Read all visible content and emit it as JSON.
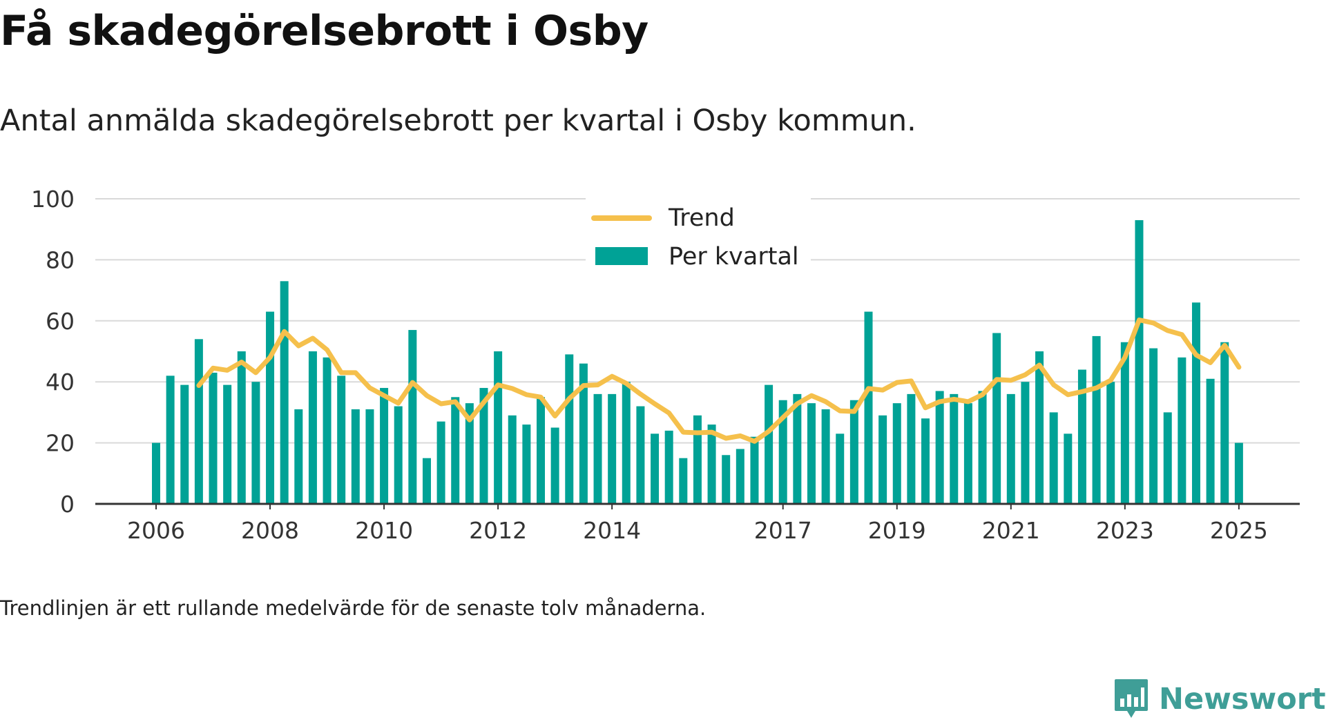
{
  "title": "Få skadegörelsebrott i Osby",
  "subtitle": "Antal anmälda skadegörelsebrott per kvartal i Osby kommun.",
  "note": "Trendlinjen är ett rullande medelvärde för de senaste tolv månaderna.",
  "brand": {
    "name": "Newsworthy",
    "logo_icon": "bar-chart-speech-bubble-icon"
  },
  "colors": {
    "bars": "#00a296",
    "trend": "#f5c04c",
    "grid": "#d9d9d9",
    "axis": "#333333",
    "brand": "#3f9e97"
  },
  "chart_data": {
    "type": "bar",
    "ylim": [
      0,
      100
    ],
    "yticks": [
      0,
      20,
      40,
      60,
      80,
      100
    ],
    "xlabel": "",
    "ylabel": "",
    "xtick_labels": [
      "2006",
      "2008",
      "2010",
      "2012",
      "2014",
      "2017",
      "2019",
      "2021",
      "2023",
      "2025"
    ],
    "legend": {
      "placement": "top-center",
      "entries": [
        "Trend",
        "Per kvartal"
      ]
    },
    "grid": true,
    "categories": [
      "2006 Q1",
      "2006 Q2",
      "2006 Q3",
      "2006 Q4",
      "2007 Q1",
      "2007 Q2",
      "2007 Q3",
      "2007 Q4",
      "2008 Q1",
      "2008 Q2",
      "2008 Q3",
      "2008 Q4",
      "2009 Q1",
      "2009 Q2",
      "2009 Q3",
      "2009 Q4",
      "2010 Q1",
      "2010 Q2",
      "2010 Q3",
      "2010 Q4",
      "2011 Q1",
      "2011 Q2",
      "2011 Q3",
      "2011 Q4",
      "2012 Q1",
      "2012 Q2",
      "2012 Q3",
      "2012 Q4",
      "2013 Q1",
      "2013 Q2",
      "2013 Q3",
      "2013 Q4",
      "2014 Q1",
      "2014 Q2",
      "2014 Q3",
      "2014 Q4",
      "2015 Q1",
      "2015 Q2",
      "2015 Q3",
      "2015 Q4",
      "2016 Q1",
      "2016 Q2",
      "2016 Q3",
      "2016 Q4",
      "2017 Q1",
      "2017 Q2",
      "2017 Q3",
      "2017 Q4",
      "2018 Q1",
      "2018 Q2",
      "2018 Q3",
      "2018 Q4",
      "2019 Q1",
      "2019 Q2",
      "2019 Q3",
      "2019 Q4",
      "2020 Q1",
      "2020 Q2",
      "2020 Q3",
      "2020 Q4",
      "2021 Q1",
      "2021 Q2",
      "2021 Q3",
      "2021 Q4",
      "2022 Q1",
      "2022 Q2",
      "2022 Q3",
      "2022 Q4",
      "2023 Q1",
      "2023 Q2",
      "2023 Q3",
      "2023 Q4",
      "2024 Q1",
      "2024 Q2",
      "2024 Q3",
      "2024 Q4",
      "2025 Q1"
    ],
    "series": [
      {
        "name": "Per kvartal",
        "type": "bar",
        "values": [
          20,
          42,
          39,
          54,
          43,
          39,
          50,
          40,
          63,
          73,
          31,
          50,
          48,
          42,
          31,
          31,
          38,
          32,
          57,
          15,
          27,
          35,
          33,
          38,
          50,
          29,
          26,
          35,
          25,
          49,
          46,
          36,
          36,
          40,
          32,
          23,
          24,
          15,
          29,
          26,
          16,
          18,
          22,
          39,
          34,
          36,
          33,
          31,
          23,
          34,
          63,
          29,
          33,
          36,
          28,
          37,
          36,
          33,
          37,
          56,
          36,
          40,
          50,
          30,
          23,
          44,
          55,
          40,
          53,
          93,
          51,
          30,
          48,
          66,
          41,
          53,
          20
        ]
      },
      {
        "name": "Trend",
        "type": "line",
        "values": [
          null,
          null,
          null,
          38.8,
          44.5,
          43.8,
          46.5,
          43.0,
          48.0,
          56.5,
          51.8,
          54.3,
          50.5,
          43.0,
          43.0,
          38.0,
          35.5,
          33.0,
          39.8,
          35.5,
          32.8,
          33.5,
          27.5,
          33.3,
          39.0,
          37.8,
          35.8,
          35.0,
          28.8,
          34.5,
          38.8,
          39.0,
          41.8,
          39.5,
          36.0,
          32.8,
          29.8,
          23.5,
          23.3,
          23.5,
          21.5,
          22.3,
          20.5,
          23.8,
          28.3,
          32.8,
          35.5,
          33.5,
          30.5,
          30.3,
          37.8,
          37.3,
          39.8,
          40.3,
          31.5,
          33.5,
          34.3,
          33.5,
          35.8,
          40.8,
          40.5,
          42.3,
          45.5,
          39.0,
          35.8,
          36.8,
          38.0,
          40.5,
          48.0,
          60.3,
          59.3,
          56.8,
          55.5,
          48.8,
          46.3,
          52.0,
          44.8
        ]
      }
    ]
  }
}
